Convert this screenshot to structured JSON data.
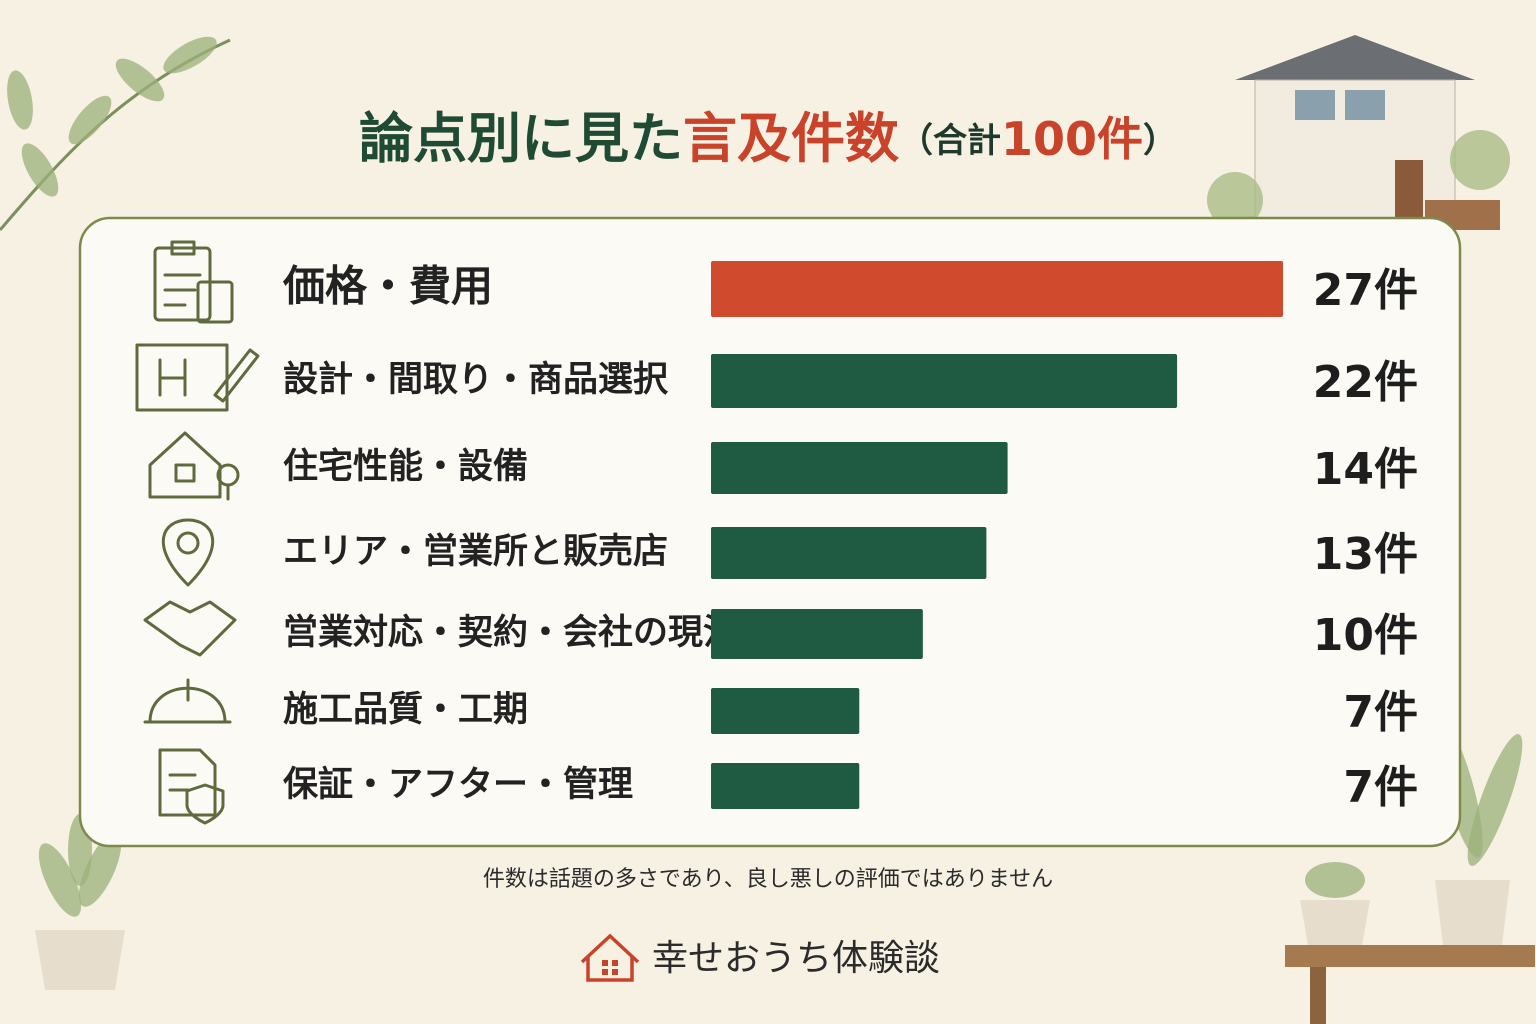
{
  "chart_data": {
    "type": "hbar",
    "title": [
      {
        "text": "論点別に見た",
        "color": "#1f4a33"
      },
      {
        "text": "言及件数",
        "color": "#c8432a"
      },
      {
        "text": "（合計",
        "color": "#1f3a2c"
      },
      {
        "text": "100件",
        "color": "#c8432a"
      },
      {
        "text": "）",
        "color": "#1f3a2c"
      }
    ],
    "categories": [
      "価格・費用",
      "設計・間取り・商品選択",
      "住宅性能・設備",
      "エリア・営業所と販売店",
      "営業対応・契約・会社の現況",
      "施工品質・工期",
      "保証・アフター・管理"
    ],
    "values": [
      27,
      22,
      14,
      13,
      10,
      7,
      7
    ],
    "value_labels": [
      "27件",
      "22件",
      "14件",
      "13件",
      "10件",
      "7件",
      "7件"
    ],
    "colors": [
      "#d04a2e",
      "#1f5a43",
      "#1f5a43",
      "#1f5a43",
      "#1f5a43",
      "#1f5a43",
      "#1f5a43"
    ],
    "xlim": [
      0,
      27
    ]
  },
  "note": "件数は話題の多さであり、良し悪しの評価ではありません",
  "brand": "幸せおうち体験談"
}
